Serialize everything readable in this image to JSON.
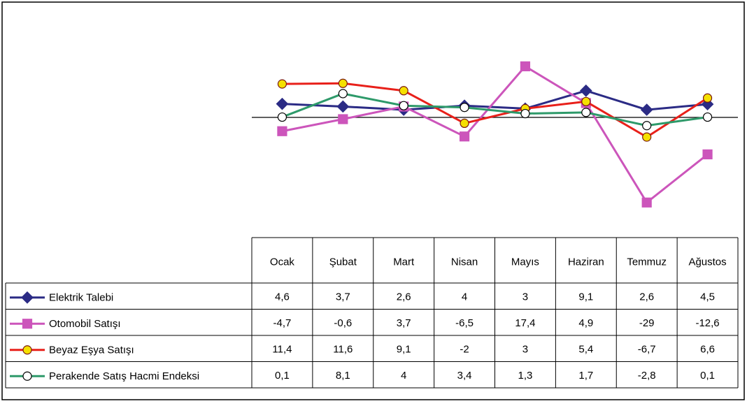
{
  "chart_data": {
    "type": "line",
    "categories": [
      "Ocak",
      "Şubat",
      "Mart",
      "Nisan",
      "Mayıs",
      "Haziran",
      "Temmuz",
      "Ağustos"
    ],
    "ylim": [
      -35,
      35
    ],
    "series": [
      {
        "name": "Elektrik Talebi",
        "color": "#2b2b85",
        "marker": "diamond",
        "marker_color": "#2b2b85",
        "values": [
          4.6,
          3.7,
          2.6,
          4,
          3,
          9.1,
          2.6,
          4.5
        ],
        "value_labels": [
          "4,6",
          "3,7",
          "2,6",
          "4",
          "3",
          "9,1",
          "2,6",
          "4,5"
        ]
      },
      {
        "name": "Otomobil Satışı",
        "color": "#cc55bb",
        "marker": "square",
        "marker_color": "#cc55bb",
        "values": [
          -4.7,
          -0.6,
          3.7,
          -6.5,
          17.4,
          4.9,
          -29,
          -12.6
        ],
        "value_labels": [
          "-4,7",
          "-0,6",
          "3,7",
          "-6,5",
          "17,4",
          "4,9",
          "-29",
          "-12,6"
        ]
      },
      {
        "name": "Beyaz Eşya Satışı",
        "color": "#e8201a",
        "marker": "circle",
        "marker_color": "#f5e000",
        "values": [
          11.4,
          11.6,
          9.1,
          -2,
          3,
          5.4,
          -6.7,
          6.6
        ],
        "value_labels": [
          "11,4",
          "11,6",
          "9,1",
          "-2",
          "3",
          "5,4",
          "-6,7",
          "6,6"
        ]
      },
      {
        "name": "Perakende Satış Hacmi Endeksi",
        "color": "#2e9a6a",
        "marker": "circle",
        "marker_color": "#ffffff",
        "values": [
          0.1,
          8.1,
          4,
          3.4,
          1.3,
          1.7,
          -2.8,
          0.1
        ],
        "value_labels": [
          "0,1",
          "8,1",
          "4",
          "3,4",
          "1,3",
          "1,7",
          "-2,8",
          "0,1"
        ]
      }
    ]
  }
}
